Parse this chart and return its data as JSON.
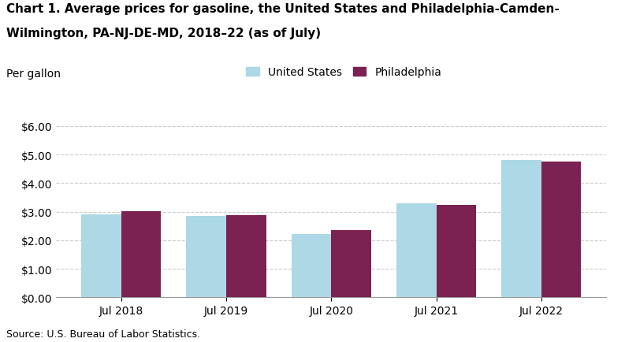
{
  "title_line1": "Chart 1. Average prices for gasoline, the United States and Philadelphia-Camden-",
  "title_line2": "Wilmington, PA-NJ-DE-MD, 2018–22 (as of July)",
  "ylabel": "Per gallon",
  "source": "Source: U.S. Bureau of Labor Statistics.",
  "categories": [
    "Jul 2018",
    "Jul 2019",
    "Jul 2020",
    "Jul 2021",
    "Jul 2022"
  ],
  "us_values": [
    2.92,
    2.86,
    2.22,
    3.3,
    4.8
  ],
  "philly_values": [
    3.01,
    2.87,
    2.37,
    3.24,
    4.77
  ],
  "us_color": "#add8e6",
  "philly_color": "#7b2252",
  "us_label": "United States",
  "philly_label": "Philadelphia",
  "ylim": [
    0,
    6.0
  ],
  "yticks": [
    0.0,
    1.0,
    2.0,
    3.0,
    4.0,
    5.0,
    6.0
  ],
  "bar_width": 0.38,
  "background_color": "#ffffff",
  "grid_color": "#cccccc",
  "title_fontsize": 11,
  "axis_fontsize": 10,
  "tick_fontsize": 10,
  "legend_fontsize": 10,
  "source_fontsize": 9,
  "ylabel_fontsize": 10
}
